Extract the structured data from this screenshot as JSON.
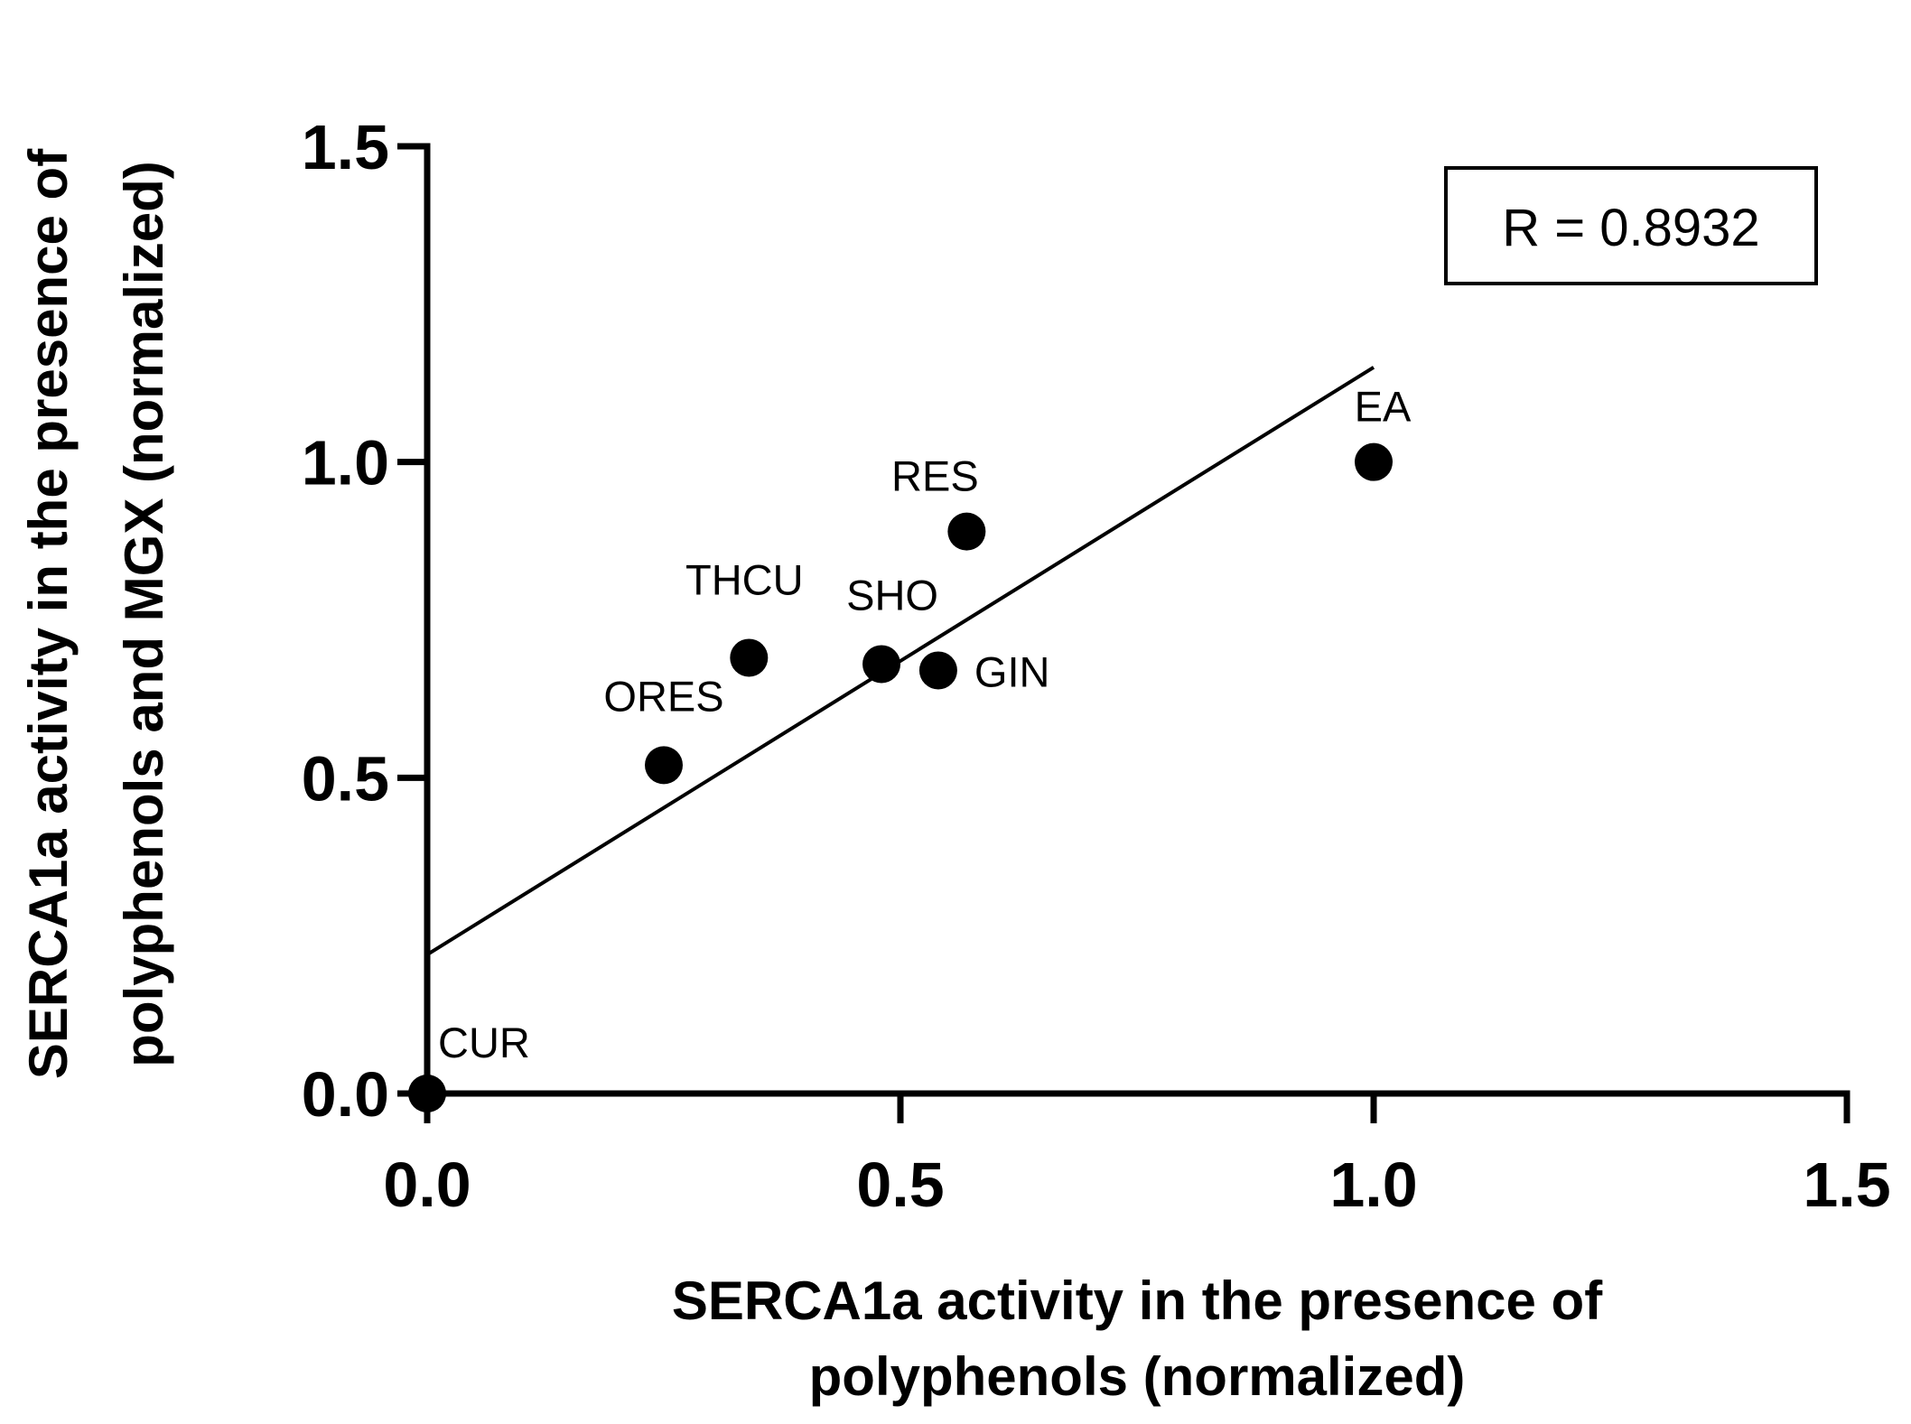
{
  "chart_data": {
    "type": "scatter",
    "xlabel_lines": [
      "SERCA1a activity in the presence of",
      "polyphenols (normalized)"
    ],
    "ylabel_lines": [
      "SERCA1a activity in the presence of",
      "polyphenols and MGX (normalized)"
    ],
    "xlim": [
      0,
      1.5
    ],
    "ylim": [
      0,
      1.5
    ],
    "x_ticks": [
      "0.0",
      "0.5",
      "1.0",
      "1.5"
    ],
    "y_ticks": [
      "0.0",
      "0.5",
      "1.0",
      "1.5"
    ],
    "points": [
      {
        "label": "CUR",
        "x": 0.0,
        "y": 0.0
      },
      {
        "label": "ORES",
        "x": 0.25,
        "y": 0.52
      },
      {
        "label": "THCU",
        "x": 0.34,
        "y": 0.69
      },
      {
        "label": "SHO",
        "x": 0.48,
        "y": 0.68
      },
      {
        "label": "GIN",
        "x": 0.54,
        "y": 0.67
      },
      {
        "label": "RES",
        "x": 0.57,
        "y": 0.89
      },
      {
        "label": "EA",
        "x": 1.0,
        "y": 1.0
      }
    ],
    "fit_line": {
      "x_start": 0.0,
      "y_start": 0.22,
      "x_end": 1.0,
      "y_end": 1.15
    },
    "annotation": "R = 0.8932"
  }
}
